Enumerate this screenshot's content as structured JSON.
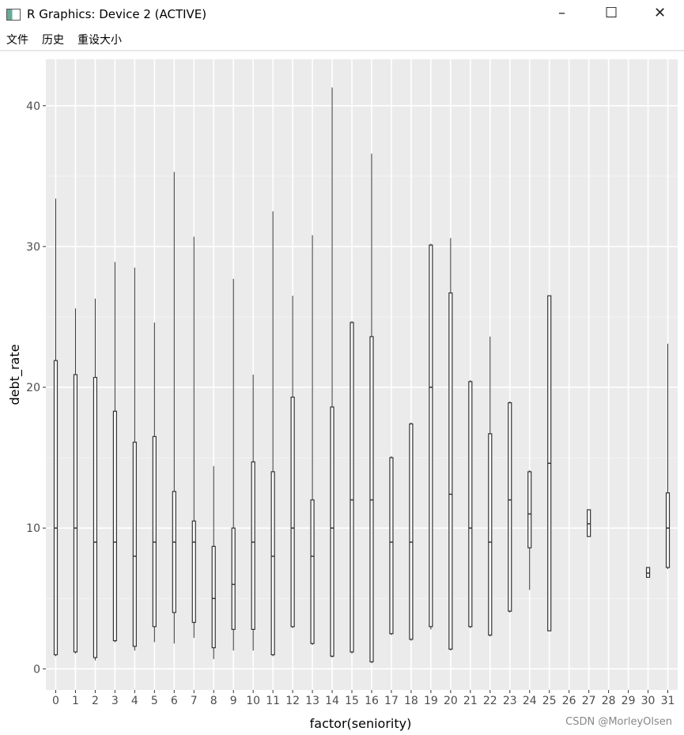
{
  "window": {
    "title": "R Graphics: Device 2 (ACTIVE)",
    "menu": [
      "文件",
      "历史",
      "重设大小"
    ]
  },
  "chart_data": {
    "type": "boxplot",
    "x_label": "factor(seniority)",
    "y_label": "debt_rate",
    "categories": [
      "0",
      "1",
      "2",
      "3",
      "4",
      "5",
      "6",
      "7",
      "8",
      "9",
      "10",
      "11",
      "12",
      "13",
      "14",
      "15",
      "16",
      "17",
      "18",
      "19",
      "20",
      "21",
      "22",
      "23",
      "24",
      "25",
      "26",
      "27",
      "28",
      "29",
      "30",
      "31"
    ],
    "boxes": [
      {
        "min": 0.9,
        "q1": 1.0,
        "median": 10,
        "q3": 21.9,
        "max": 33.4
      },
      {
        "min": 1.1,
        "q1": 1.2,
        "median": 10,
        "q3": 20.9,
        "max": 25.6
      },
      {
        "min": 0.6,
        "q1": 0.8,
        "median": 9,
        "q3": 20.7,
        "max": 26.3
      },
      {
        "min": 1.9,
        "q1": 2.0,
        "median": 9,
        "q3": 18.3,
        "max": 28.9
      },
      {
        "min": 1.3,
        "q1": 1.6,
        "median": 8,
        "q3": 16.1,
        "max": 28.5
      },
      {
        "min": 1.9,
        "q1": 3.0,
        "median": 9,
        "q3": 16.5,
        "max": 24.6
      },
      {
        "min": 1.8,
        "q1": 4.0,
        "median": 9,
        "q3": 12.6,
        "max": 35.3
      },
      {
        "min": 2.2,
        "q1": 3.3,
        "median": 9,
        "q3": 10.5,
        "max": 30.7
      },
      {
        "min": 0.7,
        "q1": 1.5,
        "median": 5,
        "q3": 8.7,
        "max": 14.4
      },
      {
        "min": 1.3,
        "q1": 2.8,
        "median": 6,
        "q3": 10,
        "max": 27.7
      },
      {
        "min": 1.3,
        "q1": 2.8,
        "median": 9,
        "q3": 14.7,
        "max": 20.9
      },
      {
        "min": 0.9,
        "q1": 1.0,
        "median": 8,
        "q3": 14,
        "max": 32.5
      },
      {
        "min": 2.9,
        "q1": 3.0,
        "median": 10,
        "q3": 19.3,
        "max": 26.5
      },
      {
        "min": 1.7,
        "q1": 1.8,
        "median": 8,
        "q3": 12,
        "max": 30.8
      },
      {
        "min": 0.8,
        "q1": 0.9,
        "median": 10,
        "q3": 18.6,
        "max": 41.3
      },
      {
        "min": 1.1,
        "q1": 1.2,
        "median": 12,
        "q3": 24.6,
        "max": 24.7
      },
      {
        "min": 0.4,
        "q1": 0.5,
        "median": 12,
        "q3": 23.6,
        "max": 36.6
      },
      {
        "min": 2.4,
        "q1": 2.5,
        "median": 9,
        "q3": 15,
        "max": 15.1
      },
      {
        "min": 2.0,
        "q1": 2.1,
        "median": 9,
        "q3": 17.4,
        "max": 17.5
      },
      {
        "min": 2.8,
        "q1": 3.0,
        "median": 20,
        "q3": 30.1,
        "max": 30.2
      },
      {
        "min": 1.3,
        "q1": 1.4,
        "median": 12.4,
        "q3": 26.7,
        "max": 30.6
      },
      {
        "min": 2.9,
        "q1": 3.0,
        "median": 10,
        "q3": 20.4,
        "max": 20.5
      },
      {
        "min": 2.3,
        "q1": 2.4,
        "median": 9,
        "q3": 16.7,
        "max": 23.6
      },
      {
        "min": 4.0,
        "q1": 4.1,
        "median": 12,
        "q3": 18.9,
        "max": 19
      },
      {
        "min": 5.6,
        "q1": 8.6,
        "median": 11,
        "q3": 14,
        "max": 14.1
      },
      {
        "min": 2.7,
        "q1": 2.7,
        "median": 14.6,
        "q3": 26.5,
        "max": 26.5
      },
      null,
      {
        "min": 9.4,
        "q1": 9.4,
        "median": 10.3,
        "q3": 11.3,
        "max": 11.3
      },
      null,
      null,
      {
        "min": 6.5,
        "q1": 6.5,
        "median": 6.8,
        "q3": 7.2,
        "max": 7.2
      },
      {
        "min": 7.1,
        "q1": 7.2,
        "median": 10,
        "q3": 12.5,
        "max": 23.1
      }
    ],
    "color": "#333333",
    "ylim": [
      -1.5,
      43.3
    ],
    "yticks": [
      0,
      10,
      20,
      30,
      40
    ],
    "grid": true
  },
  "watermark": "CSDN @MorleyOlsen"
}
